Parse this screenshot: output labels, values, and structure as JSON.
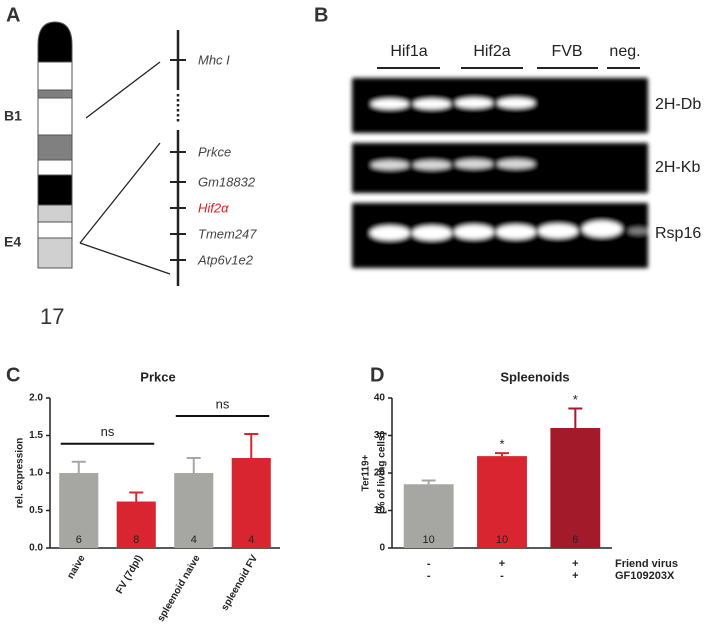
{
  "panels": {
    "a": "A",
    "b": "B",
    "c": "C",
    "d": "D"
  },
  "chromosome": {
    "bands": [
      "B1",
      "E4"
    ],
    "number": "17",
    "genes": [
      "Mhc I",
      "Prkce",
      "Gm18832",
      "Hif2α",
      "Tmem247",
      "Atp6v1e2"
    ]
  },
  "gel": {
    "groups": [
      "Hif1a",
      "Hif2a",
      "FVB",
      "neg."
    ],
    "rows": [
      "2H-Db",
      "2H-Kb",
      "Rsp16"
    ]
  },
  "chart_data": [
    {
      "type": "bar",
      "title": "Prkce",
      "y_label": "rel. expression",
      "categories": [
        "naive",
        "FV (7dpl)",
        "spleenoid naive",
        "spleenoid FV"
      ],
      "values": [
        1.0,
        0.62,
        1.0,
        1.2
      ],
      "errors": [
        0.15,
        0.12,
        0.2,
        0.32
      ],
      "n": [
        6,
        8,
        4,
        4
      ],
      "colors": [
        "#a6a6a3",
        "#d9252f",
        "#a6a6a3",
        "#d9252f"
      ],
      "comparisons": [
        {
          "label": "ns",
          "from": 0,
          "to": 1
        },
        {
          "label": "ns",
          "from": 2,
          "to": 3
        }
      ],
      "ylim": [
        0,
        2
      ],
      "yticks": [
        {
          "value": 0,
          "label": "0.0"
        },
        {
          "value": 0.5,
          "label": "0.5"
        },
        {
          "value": 1,
          "label": "1.0"
        },
        {
          "value": 1.5,
          "label": "1.5"
        },
        {
          "value": 2,
          "label": "2.0"
        }
      ]
    },
    {
      "type": "bar",
      "title": "Spleenoids",
      "y_label": [
        "Ter119+",
        "[% of living cells]"
      ],
      "values": [
        17,
        24.5,
        32
      ],
      "errors": [
        1,
        0.8,
        5.2
      ],
      "n": [
        10,
        10,
        6
      ],
      "significance": [
        null,
        "*",
        "*"
      ],
      "colors": [
        "#a6a6a3",
        "#d9252f",
        "#a31b2b"
      ],
      "conditions": [
        {
          "name": "Friend virus",
          "values": [
            "-",
            "+",
            "+"
          ]
        },
        {
          "name": "GF109203X",
          "values": [
            "-",
            "-",
            "+"
          ]
        }
      ],
      "ylim": [
        0,
        40
      ],
      "yticks": [
        0,
        10,
        20,
        30,
        40
      ]
    }
  ]
}
